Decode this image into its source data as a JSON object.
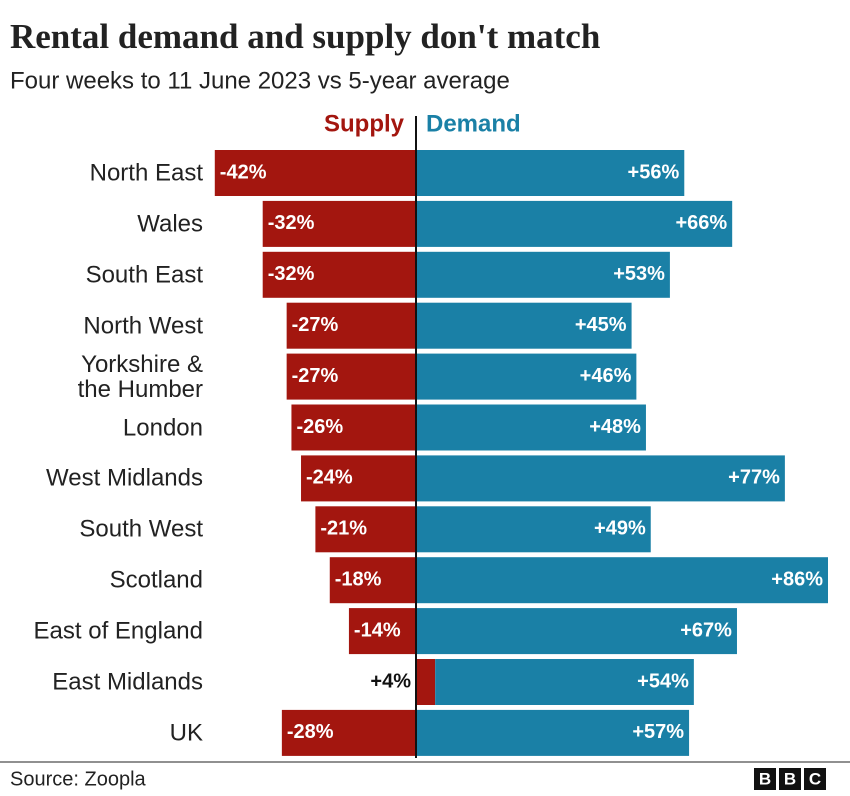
{
  "chart_data": {
    "type": "diverging-bar",
    "title": "Rental demand and supply don't match",
    "subtitle": "Four weeks to 11 June 2023 vs 5-year average",
    "categories": [
      "North East",
      "Wales",
      "South East",
      "North West",
      "Yorkshire &\nthe Humber",
      "London",
      "West Midlands",
      "South West",
      "Scotland",
      "East of England",
      "East Midlands",
      "UK"
    ],
    "series": [
      {
        "name": "Supply",
        "color": "#a3160f",
        "values": [
          -42,
          -32,
          -32,
          -27,
          -27,
          -26,
          -24,
          -21,
          -18,
          -14,
          4,
          -28
        ],
        "value_labels": [
          "-42%",
          "-32%",
          "-32%",
          "-27%",
          "-27%",
          "-26%",
          "-24%",
          "-21%",
          "-18%",
          "-14%",
          "+4%",
          "-28%"
        ]
      },
      {
        "name": "Demand",
        "color": "#1a80a6",
        "values": [
          56,
          66,
          53,
          45,
          46,
          48,
          77,
          49,
          86,
          67,
          54,
          57
        ],
        "value_labels": [
          "+56%",
          "+66%",
          "+53%",
          "+45%",
          "+46%",
          "+48%",
          "+77%",
          "+49%",
          "+86%",
          "+67%",
          "+54%",
          "+57%"
        ]
      }
    ],
    "source": "Source: Zoopla",
    "logo": [
      "B",
      "B",
      "C"
    ]
  }
}
